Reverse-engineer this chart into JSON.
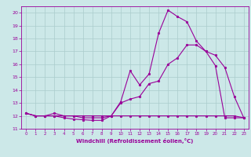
{
  "background_color": "#cce8e8",
  "grid_color": "#aacccc",
  "line_color": "#990099",
  "xlabel": "Windchill (Refroidissement éolien,°C)",
  "xlim": [
    -0.5,
    23.5
  ],
  "ylim": [
    11.0,
    20.5
  ],
  "yticks": [
    11,
    12,
    13,
    14,
    15,
    16,
    17,
    18,
    19,
    20
  ],
  "xticks": [
    0,
    1,
    2,
    3,
    4,
    5,
    6,
    7,
    8,
    9,
    10,
    11,
    12,
    13,
    14,
    15,
    16,
    17,
    18,
    19,
    20,
    21,
    22,
    23
  ],
  "line1_x": [
    0,
    1,
    2,
    3,
    4,
    5,
    6,
    7,
    8,
    9,
    10,
    11,
    12,
    13,
    14,
    15,
    16,
    17,
    18,
    19,
    20,
    21,
    22,
    23
  ],
  "line1_y": [
    12.2,
    12.0,
    12.0,
    12.0,
    11.85,
    11.75,
    11.7,
    11.65,
    11.65,
    12.0,
    13.1,
    15.5,
    14.4,
    15.25,
    18.4,
    20.2,
    19.7,
    19.3,
    17.8,
    17.0,
    15.9,
    11.85,
    11.85,
    11.85
  ],
  "line2_x": [
    0,
    1,
    2,
    3,
    4,
    5,
    6,
    7,
    8,
    9,
    10,
    11,
    12,
    13,
    14,
    15,
    16,
    17,
    18,
    19,
    20,
    21,
    22,
    23
  ],
  "line2_y": [
    12.2,
    12.0,
    12.0,
    12.0,
    12.0,
    12.0,
    12.0,
    12.0,
    12.0,
    12.0,
    12.0,
    12.0,
    12.0,
    12.0,
    12.0,
    12.0,
    12.0,
    12.0,
    12.0,
    12.0,
    12.0,
    12.0,
    12.0,
    11.85
  ],
  "line3_x": [
    0,
    1,
    2,
    3,
    4,
    5,
    6,
    7,
    8,
    9,
    10,
    11,
    12,
    13,
    14,
    15,
    16,
    17,
    18,
    19,
    20,
    21,
    22,
    23
  ],
  "line3_y": [
    12.2,
    12.0,
    12.0,
    12.2,
    12.0,
    12.0,
    11.85,
    11.85,
    11.85,
    12.0,
    13.0,
    13.3,
    13.5,
    14.5,
    14.7,
    16.0,
    16.5,
    17.5,
    17.5,
    17.0,
    16.7,
    15.75,
    13.5,
    11.85
  ]
}
